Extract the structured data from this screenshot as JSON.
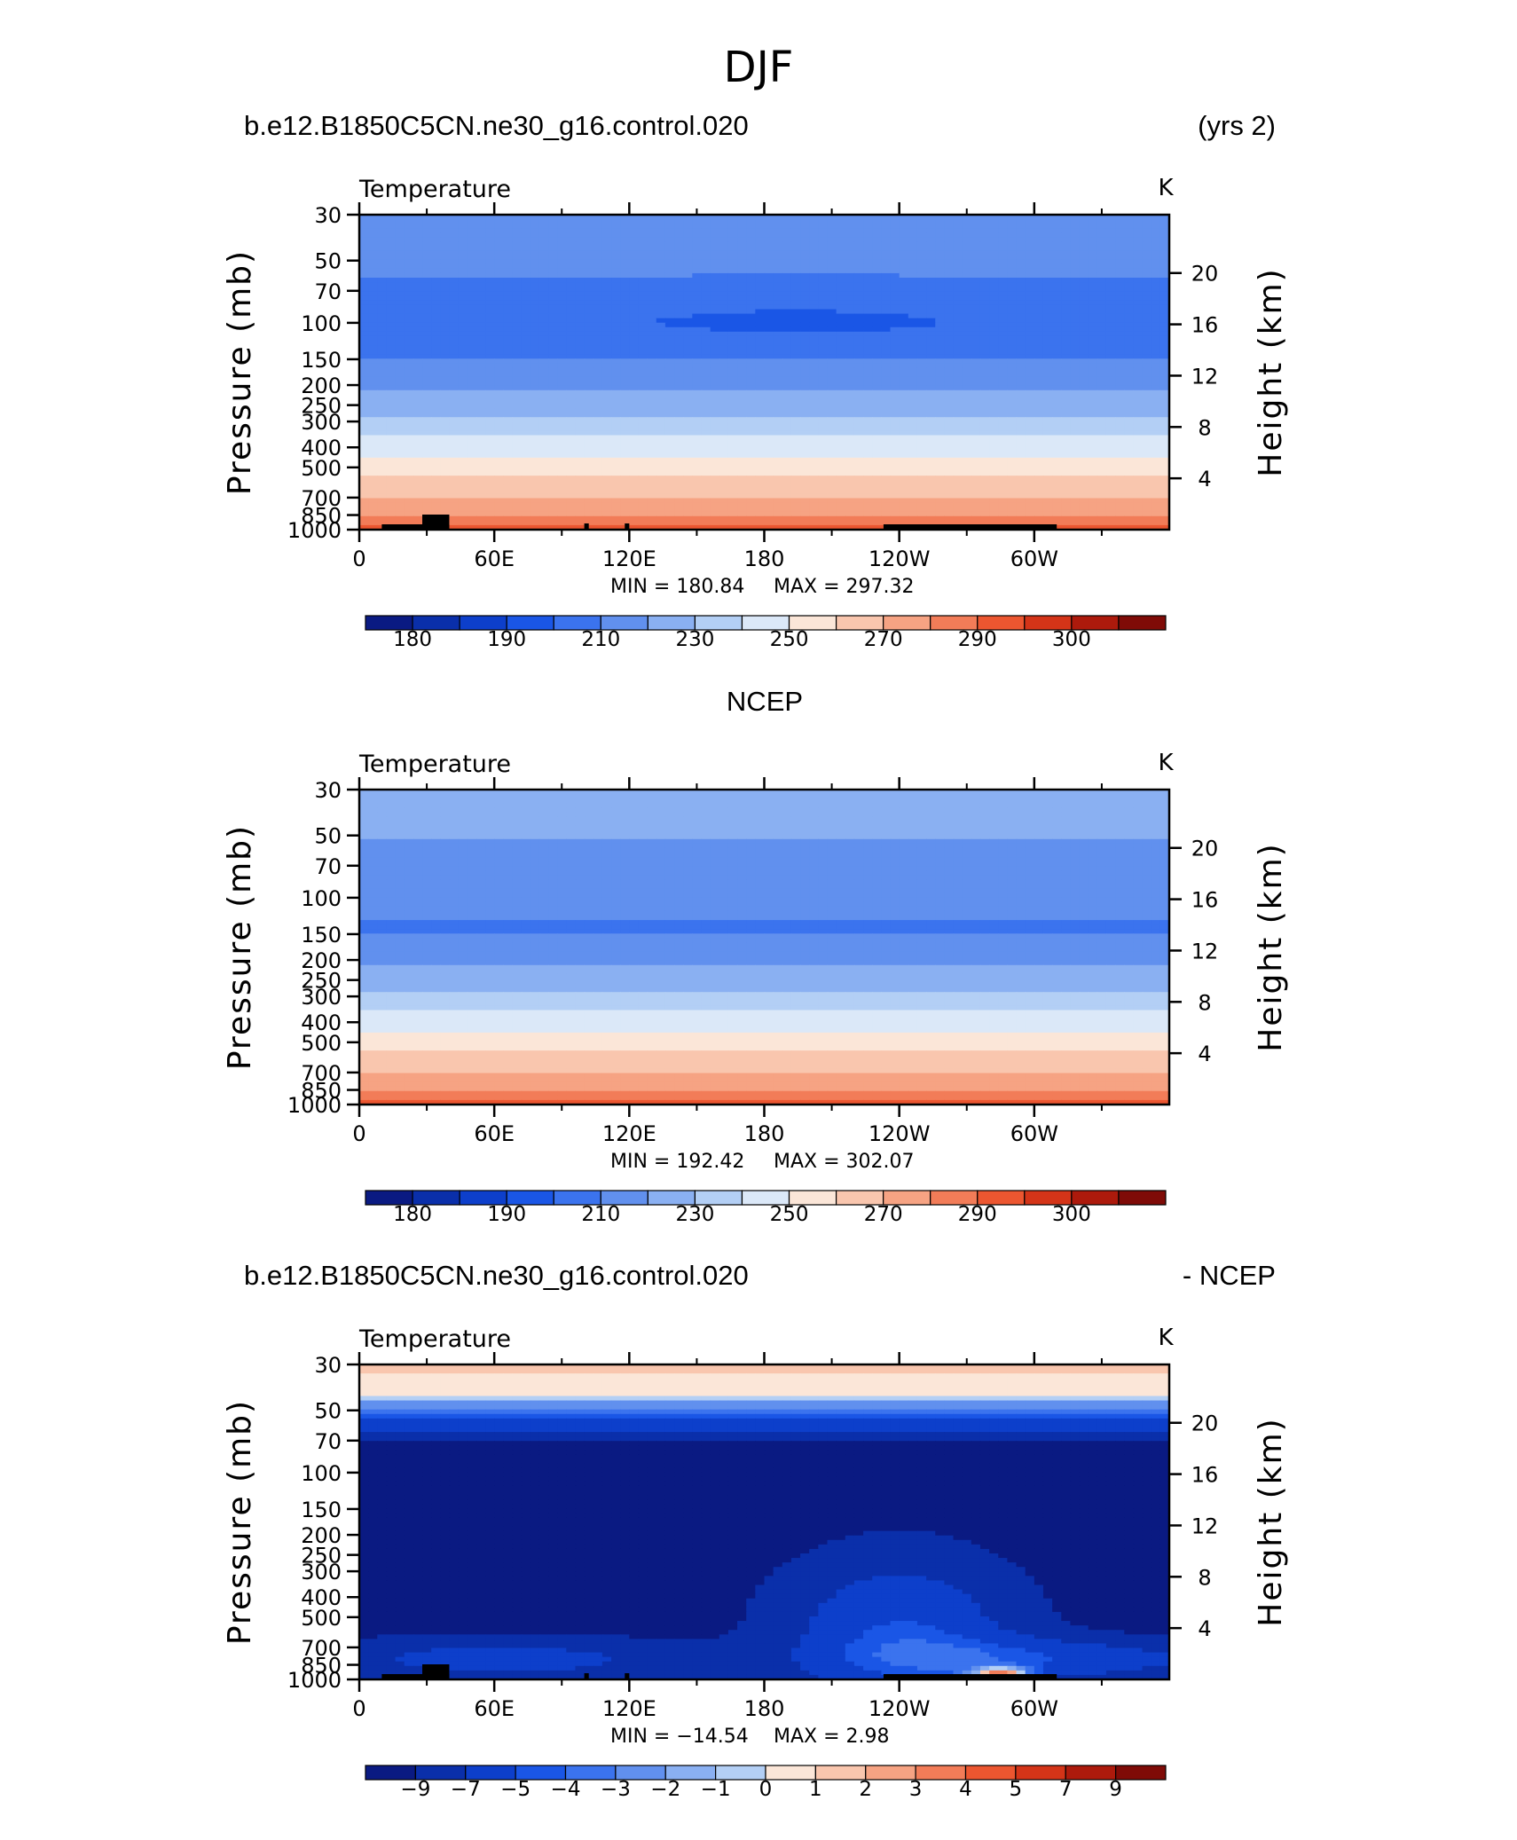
{
  "figure": {
    "title": "DJF"
  },
  "colors": {
    "temperature_levels": [
      "#0a1a82",
      "#0a2faa",
      "#0d3fcb",
      "#1a56e6",
      "#3b73ee",
      "#6190ee",
      "#8ab0f2",
      "#b3cff5",
      "#dbe8f8",
      "#fbe6d8",
      "#f9c6ae",
      "#f6a383",
      "#f27c58",
      "#ec5630",
      "#d43418",
      "#ad1a0c",
      "#7f0b07"
    ],
    "land": "#000000",
    "frame": "#000000"
  },
  "chart_data": [
    {
      "type": "contour",
      "panel": "model",
      "header_left": "b.e12.B1850C5CN.ne30_g16.control.020",
      "header_right": "(yrs 2)",
      "variable": "Temperature",
      "units": "K",
      "ylabel": "Pressure (mb)",
      "y2label": "Height (km)",
      "x_ticks": [
        "0",
        "60E",
        "120E",
        "180",
        "120W",
        "60W"
      ],
      "x_tick_values": [
        0,
        60,
        120,
        180,
        240,
        300
      ],
      "xlim": [
        0,
        360
      ],
      "pressure_ticks": [
        30,
        50,
        70,
        100,
        150,
        200,
        250,
        300,
        400,
        500,
        700,
        850,
        1000
      ],
      "ylim_pressure": [
        1000,
        30
      ],
      "height_ticks": [
        4,
        8,
        12,
        16,
        20
      ],
      "min_label": "MIN = 180.84",
      "max_label": "MAX = 297.32",
      "min": 180.84,
      "max": 297.32,
      "levels_labels": [
        "180",
        "190",
        "210",
        "230",
        "250",
        "270",
        "290",
        "300"
      ]
    },
    {
      "type": "contour",
      "panel": "obs",
      "header_center": "NCEP",
      "variable": "Temperature",
      "units": "K",
      "ylabel": "Pressure (mb)",
      "y2label": "Height (km)",
      "x_ticks": [
        "0",
        "60E",
        "120E",
        "180",
        "120W",
        "60W"
      ],
      "x_tick_values": [
        0,
        60,
        120,
        180,
        240,
        300
      ],
      "xlim": [
        0,
        360
      ],
      "pressure_ticks": [
        30,
        50,
        70,
        100,
        150,
        200,
        250,
        300,
        400,
        500,
        700,
        850,
        1000
      ],
      "ylim_pressure": [
        1000,
        30
      ],
      "height_ticks": [
        4,
        8,
        12,
        16,
        20
      ],
      "min_label": "MIN = 192.42",
      "max_label": "MAX = 302.07",
      "min": 192.42,
      "max": 302.07,
      "levels_labels": [
        "180",
        "190",
        "210",
        "230",
        "250",
        "270",
        "290",
        "300"
      ]
    },
    {
      "type": "contour",
      "panel": "diff",
      "header_left": "b.e12.B1850C5CN.ne30_g16.control.020",
      "header_right": "- NCEP",
      "variable": "Temperature",
      "units": "K",
      "ylabel": "Pressure (mb)",
      "y2label": "Height (km)",
      "x_ticks": [
        "0",
        "60E",
        "120E",
        "180",
        "120W",
        "60W"
      ],
      "x_tick_values": [
        0,
        60,
        120,
        180,
        240,
        300
      ],
      "xlim": [
        0,
        360
      ],
      "pressure_ticks": [
        30,
        50,
        70,
        100,
        150,
        200,
        250,
        300,
        400,
        500,
        700,
        850,
        1000
      ],
      "ylim_pressure": [
        1000,
        30
      ],
      "height_ticks": [
        4,
        8,
        12,
        16,
        20
      ],
      "min_label": "MIN = −14.54",
      "max_label": "MAX =    2.98",
      "min": -14.54,
      "max": 2.98,
      "levels_labels": [
        "−9",
        "−7",
        "−5",
        "−4",
        "−3",
        "−2",
        "−1",
        "0",
        "1",
        "2",
        "3",
        "4",
        "5",
        "7",
        "9"
      ]
    }
  ]
}
